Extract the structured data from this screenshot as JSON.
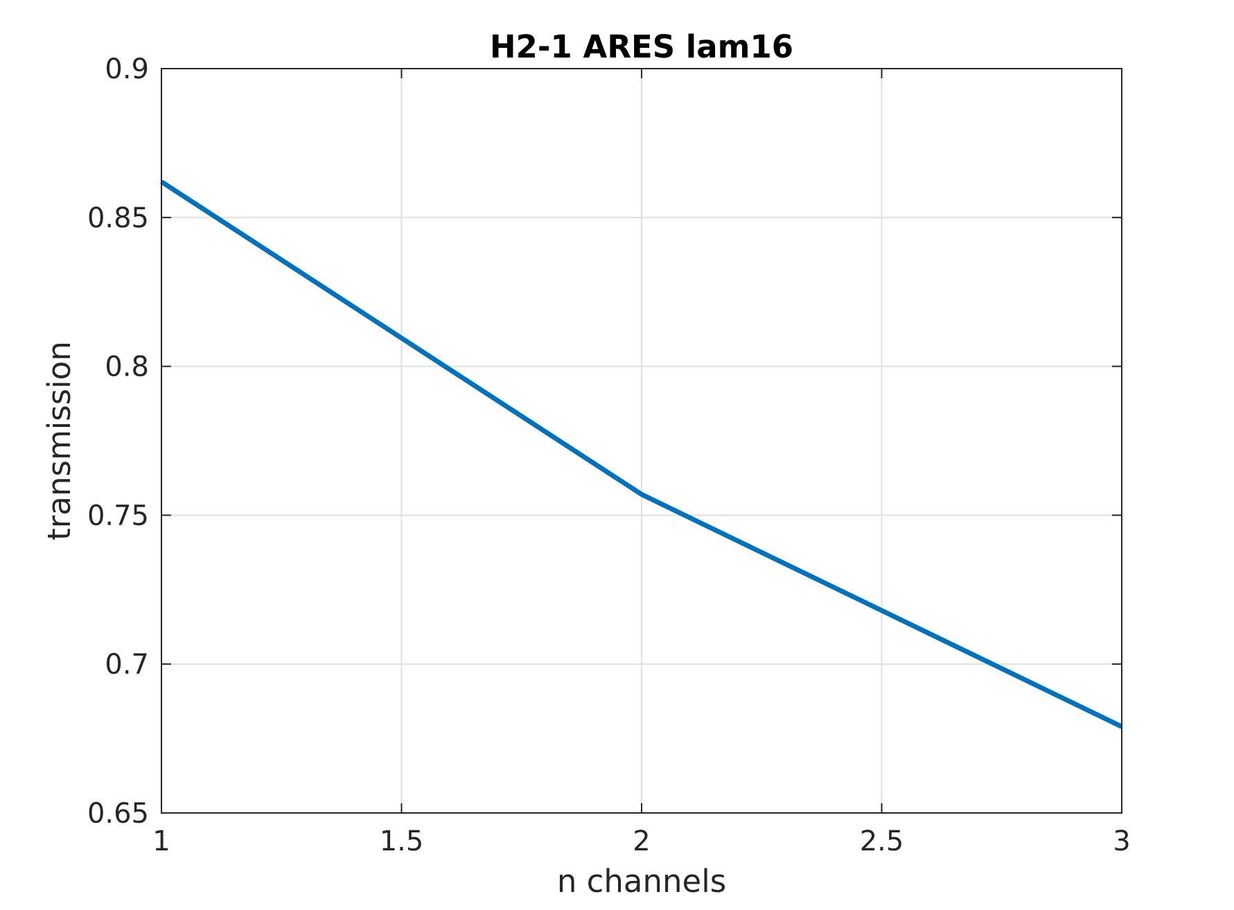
{
  "chart_data": {
    "type": "line",
    "title": "H2-1 ARES lam16",
    "xlabel": "n channels",
    "ylabel": "transmission",
    "xlim": [
      1,
      3
    ],
    "ylim": [
      0.65,
      0.9
    ],
    "xticks": [
      1,
      1.5,
      2,
      2.5,
      3
    ],
    "yticks": [
      0.65,
      0.7,
      0.75,
      0.8,
      0.85,
      0.9
    ],
    "xtick_labels": [
      "1",
      "1.5",
      "2",
      "2.5",
      "3"
    ],
    "ytick_labels": [
      "0.65",
      "0.7",
      "0.75",
      "0.8",
      "0.85",
      "0.9"
    ],
    "grid": true,
    "legend": "none",
    "series": [
      {
        "color": "#0072BD",
        "x": [
          1,
          2,
          3
        ],
        "y": [
          0.862,
          0.757,
          0.679
        ]
      }
    ]
  }
}
